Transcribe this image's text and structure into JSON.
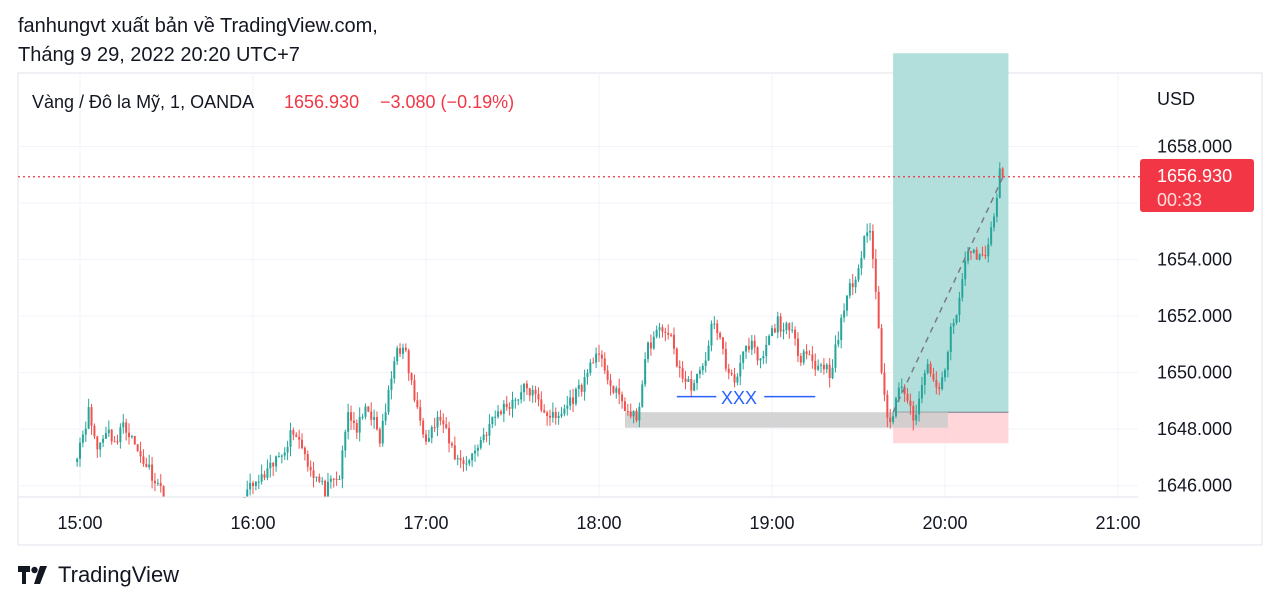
{
  "header": {
    "line1": "fanhungvt xuất bản về TradingView.com,",
    "line2": "Tháng 9 29, 2022 20:20 UTC+7"
  },
  "legend": {
    "symbol": "Vàng / Đô la Mỹ, 1, OANDA",
    "price": "1656.930",
    "change": "−3.080 (−0.19%)"
  },
  "currency": "USD",
  "price_tag": {
    "price": "1656.930",
    "countdown": "00:33"
  },
  "annotation": {
    "text": "XXX"
  },
  "footer": {
    "brand": "TradingView"
  },
  "colors": {
    "up": "#26a69a",
    "down": "#ef5350",
    "price_tag": "#f23645",
    "annotation": "#2962ff",
    "profit_zone": "#b2dfdb",
    "loss_zone": "#ffcdd2",
    "range_box": "#cccccc"
  },
  "chart_data": {
    "type": "candlestick",
    "interval": "1 minute",
    "x_tick_labels": [
      "15:00",
      "16:00",
      "17:00",
      "18:00",
      "19:00",
      "20:00",
      "21:00"
    ],
    "y_tick_labels": [
      "1646.000",
      "1648.000",
      "1650.000",
      "1652.000",
      "1654.000",
      "1656.000",
      "1658.000"
    ],
    "ylim": [
      1645.6,
      1660.6
    ],
    "last_price": 1656.93,
    "close_path": [
      [
        "14:59",
        1647.2
      ],
      [
        "15:03",
        1648.6
      ],
      [
        "15:06",
        1647.3
      ],
      [
        "15:09",
        1648.0
      ],
      [
        "15:13",
        1647.5
      ],
      [
        "15:15",
        1648.3
      ],
      [
        "15:20",
        1647.2
      ],
      [
        "15:24",
        1646.6
      ],
      [
        "15:29",
        1645.7
      ],
      [
        "15:57",
        1645.7
      ],
      [
        "16:05",
        1646.4
      ],
      [
        "16:10",
        1647.2
      ],
      [
        "16:14",
        1648.0
      ],
      [
        "16:17",
        1647.4
      ],
      [
        "16:20",
        1646.6
      ],
      [
        "16:25",
        1645.8
      ],
      [
        "16:30",
        1646.3
      ],
      [
        "16:33",
        1648.6
      ],
      [
        "16:36",
        1648.0
      ],
      [
        "16:40",
        1648.8
      ],
      [
        "16:44",
        1647.6
      ],
      [
        "16:47",
        1649.2
      ],
      [
        "16:50",
        1651.0
      ],
      [
        "16:53",
        1650.6
      ],
      [
        "16:57",
        1648.6
      ],
      [
        "17:00",
        1647.8
      ],
      [
        "17:05",
        1648.4
      ],
      [
        "17:08",
        1647.5
      ],
      [
        "17:11",
        1646.9
      ],
      [
        "17:15",
        1646.9
      ],
      [
        "17:20",
        1647.8
      ],
      [
        "17:25",
        1648.6
      ],
      [
        "17:30",
        1649.0
      ],
      [
        "17:35",
        1649.5
      ],
      [
        "17:40",
        1648.8
      ],
      [
        "17:45",
        1648.3
      ],
      [
        "17:50",
        1649.0
      ],
      [
        "17:55",
        1649.7
      ],
      [
        "17:58",
        1650.6
      ],
      [
        "18:02",
        1650.2
      ],
      [
        "18:05",
        1649.3
      ],
      [
        "18:08",
        1649.0
      ],
      [
        "18:11",
        1648.4
      ],
      [
        "18:13",
        1648.4
      ],
      [
        "18:15",
        1649.6
      ],
      [
        "18:17",
        1650.9
      ],
      [
        "18:20",
        1651.4
      ],
      [
        "18:24",
        1651.5
      ],
      [
        "18:27",
        1650.4
      ],
      [
        "18:30",
        1649.6
      ],
      [
        "18:33",
        1649.6
      ],
      [
        "18:36",
        1650.1
      ],
      [
        "18:39",
        1651.6
      ],
      [
        "18:41",
        1651.6
      ],
      [
        "18:44",
        1650.2
      ],
      [
        "18:47",
        1649.8
      ],
      [
        "18:50",
        1650.6
      ],
      [
        "18:53",
        1650.9
      ],
      [
        "18:56",
        1650.3
      ],
      [
        "18:59",
        1651.2
      ],
      [
        "19:02",
        1651.8
      ],
      [
        "19:04",
        1651.6
      ],
      [
        "19:07",
        1651.3
      ],
      [
        "19:10",
        1650.6
      ],
      [
        "19:12",
        1650.9
      ],
      [
        "19:15",
        1650.1
      ],
      [
        "19:17",
        1650.4
      ],
      [
        "19:20",
        1650.0
      ],
      [
        "19:23",
        1651.2
      ],
      [
        "19:26",
        1652.8
      ],
      [
        "19:29",
        1653.3
      ],
      [
        "19:32",
        1654.6
      ],
      [
        "19:34",
        1655.2
      ],
      [
        "19:36",
        1652.8
      ],
      [
        "19:38",
        1650.2
      ],
      [
        "19:40",
        1648.6
      ],
      [
        "19:42",
        1648.3
      ],
      [
        "19:44",
        1649.7
      ],
      [
        "19:46",
        1649.3
      ],
      [
        "19:48",
        1648.6
      ],
      [
        "19:50",
        1648.4
      ],
      [
        "19:52",
        1649.4
      ],
      [
        "19:54",
        1650.5
      ],
      [
        "19:56",
        1649.5
      ],
      [
        "19:58",
        1649.3
      ],
      [
        "20:00",
        1650.2
      ],
      [
        "20:02",
        1651.4
      ],
      [
        "20:04",
        1652.0
      ],
      [
        "20:06",
        1653.3
      ],
      [
        "20:08",
        1654.4
      ],
      [
        "20:10",
        1654.2
      ],
      [
        "20:12",
        1654.2
      ],
      [
        "20:14",
        1654.0
      ],
      [
        "20:16",
        1655.0
      ],
      [
        "20:18",
        1656.2
      ],
      [
        "20:19",
        1657.0
      ],
      [
        "20:20",
        1656.93
      ]
    ],
    "position": {
      "type": "long",
      "start": "19:42",
      "end": "20:22",
      "entry": 1648.6,
      "target": 1661.3,
      "stop": 1647.5
    },
    "range_box": {
      "start": "18:09",
      "end": "20:01",
      "top": 1648.6,
      "bottom": 1648.05
    },
    "trend_line": {
      "from": [
        "19:42",
        1648.6
      ],
      "to": [
        "20:20",
        1656.9
      ]
    },
    "annotation": {
      "time": "18:49",
      "price": 1649.15,
      "line_from": "18:27",
      "line_to": "19:15"
    }
  }
}
